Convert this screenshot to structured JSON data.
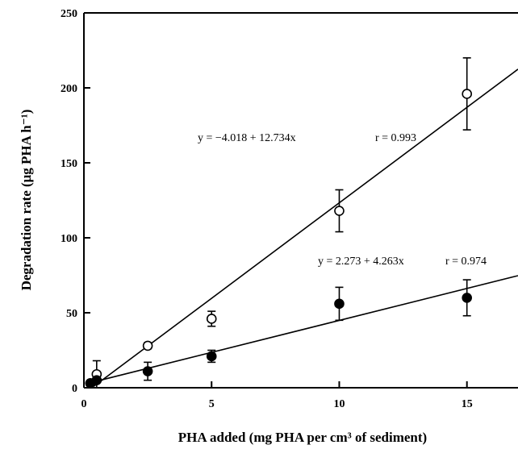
{
  "chart_data": {
    "type": "scatter",
    "title": "",
    "xlabel": "PHA added (mg PHA per cm³ of sediment)",
    "ylabel": "Degradation rate (μg PHA h⁻¹)",
    "xlim": [
      0,
      17
    ],
    "ylim": [
      0,
      250
    ],
    "xticks": [
      0,
      5,
      10,
      15
    ],
    "yticks": [
      0,
      50,
      100,
      150,
      200,
      250
    ],
    "grid": false,
    "legend": "none",
    "series": [
      {
        "marker": "open-circle",
        "x": [
          0.25,
          0.5,
          2.5,
          5,
          10,
          15
        ],
        "y": [
          3,
          9,
          28,
          46,
          118,
          196
        ],
        "yerr": [
          1,
          9,
          2,
          5,
          14,
          24
        ],
        "fit": {
          "intercept": -4.018,
          "slope": 12.734
        },
        "equation": "y = −4.018 + 12.734x",
        "r_label": "r = 0.993"
      },
      {
        "marker": "filled-circle",
        "x": [
          0.25,
          0.5,
          2.5,
          5,
          10,
          15
        ],
        "y": [
          3,
          5,
          11,
          21,
          56,
          60
        ],
        "yerr": [
          1,
          1,
          6,
          4,
          11,
          12
        ],
        "fit": {
          "intercept": 2.273,
          "slope": 4.263
        },
        "equation": "y = 2.273 + 4.263x",
        "r_label": "r = 0.974"
      }
    ]
  }
}
